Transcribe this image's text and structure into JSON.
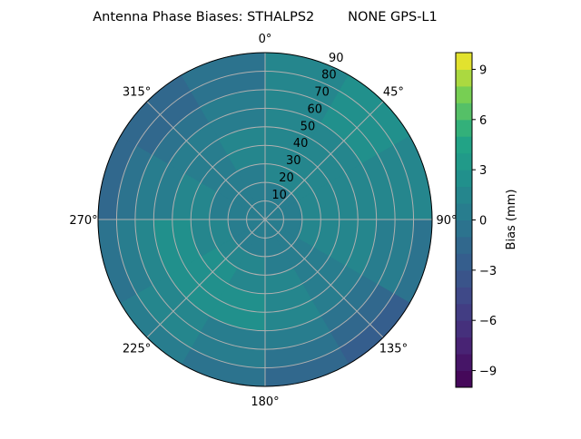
{
  "chart_data": {
    "type": "heatmap",
    "projection": "polar",
    "title": "Antenna Phase Biases: STHALPS2        NONE GPS-L1",
    "theta_zero_location": "N",
    "theta_direction": "clockwise",
    "theta_tick_labels": [
      "0°",
      "45°",
      "90°",
      "135°",
      "180°",
      "225°",
      "270°",
      "315°"
    ],
    "theta_ticks": [
      0,
      45,
      90,
      135,
      180,
      225,
      270,
      315
    ],
    "r_tick_labels": [
      "10",
      "20",
      "30",
      "40",
      "50",
      "60",
      "70",
      "80",
      "90"
    ],
    "r_ticks": [
      10,
      20,
      30,
      40,
      50,
      60,
      70,
      80,
      90
    ],
    "rlim": [
      0,
      90
    ],
    "grid": true,
    "colormap": "viridis",
    "colorbar": {
      "label": "Bias (mm)",
      "range": [
        -10,
        10
      ],
      "levels": 20,
      "ticks": [
        -9,
        -6,
        -3,
        0,
        3,
        6,
        9
      ],
      "tick_labels": [
        "−9",
        "−6",
        "−3",
        "0",
        "3",
        "6",
        "9"
      ],
      "placement": "right"
    },
    "azimuth_bins": [
      15,
      45,
      75,
      105,
      135,
      165,
      195,
      225,
      255,
      285,
      315,
      345
    ],
    "zenith_bins": [
      5,
      15,
      25,
      35,
      45,
      55,
      65,
      75,
      85
    ],
    "values": [
      [
        0,
        0.5,
        1,
        1,
        1.5,
        1,
        1,
        1.5,
        1.5
      ],
      [
        0,
        0.5,
        1,
        1.5,
        1.5,
        1.5,
        2,
        2.5,
        2
      ],
      [
        0,
        0.5,
        1,
        1.5,
        1.5,
        1.5,
        1,
        1.5,
        1
      ],
      [
        0,
        0.5,
        1,
        1.5,
        1.5,
        1,
        0.5,
        0,
        -1
      ],
      [
        0,
        0,
        0.5,
        0.5,
        0.5,
        0,
        -0.5,
        -1.5,
        -2.5
      ],
      [
        0,
        0,
        0.5,
        1,
        1.5,
        1,
        0,
        -0.5,
        -1.5
      ],
      [
        0,
        0.5,
        1,
        1.5,
        2.5,
        2,
        0.5,
        0,
        -1
      ],
      [
        0,
        0.5,
        1,
        2,
        2.5,
        2.5,
        1.5,
        1,
        0
      ],
      [
        0,
        0.5,
        1,
        1.5,
        2.5,
        2,
        1,
        0.5,
        -0.5
      ],
      [
        0,
        0,
        0.5,
        1,
        1,
        0.5,
        0,
        -0.5,
        -1.5
      ],
      [
        0,
        0,
        0.5,
        0.5,
        0.5,
        0,
        -0.5,
        -1.5,
        -2
      ],
      [
        0,
        0,
        0.5,
        1,
        1,
        0.5,
        0,
        -0.5,
        -1
      ]
    ]
  }
}
